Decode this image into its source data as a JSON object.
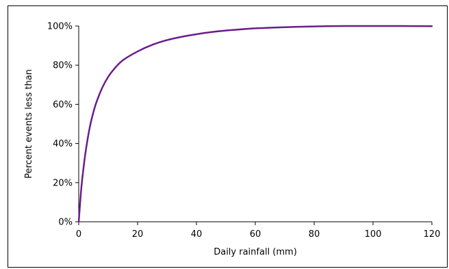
{
  "chart_data": {
    "type": "line",
    "xlabel": "Daily rainfall (mm)",
    "ylabel": "Percent events less than",
    "xlim": [
      0,
      120
    ],
    "ylim": [
      0,
      100
    ],
    "x_ticks": [
      0,
      20,
      40,
      60,
      80,
      100,
      120
    ],
    "y_ticks": [
      0,
      20,
      40,
      60,
      80,
      100
    ],
    "x_tick_labels": [
      "0",
      "20",
      "40",
      "60",
      "80",
      "100",
      "120"
    ],
    "y_tick_labels": [
      "0%",
      "20%",
      "40%",
      "60%",
      "80%",
      "100%"
    ],
    "grid": false,
    "legend": "none",
    "series": [
      {
        "color": "#6a1b8a",
        "x": [
          0,
          0.5,
          1,
          2,
          3,
          4,
          5,
          6,
          8,
          10,
          12,
          15,
          20,
          25,
          30,
          35,
          40,
          45,
          50,
          55,
          60,
          70,
          80,
          90,
          100,
          110,
          120
        ],
        "y": [
          0,
          10,
          19,
          32,
          42,
          50,
          56,
          61,
          68.5,
          74,
          78,
          82.5,
          87,
          90.4,
          92.8,
          94.5,
          95.8,
          96.9,
          97.7,
          98.3,
          98.8,
          99.4,
          99.8,
          100,
          100,
          100,
          99.9
        ]
      }
    ]
  }
}
